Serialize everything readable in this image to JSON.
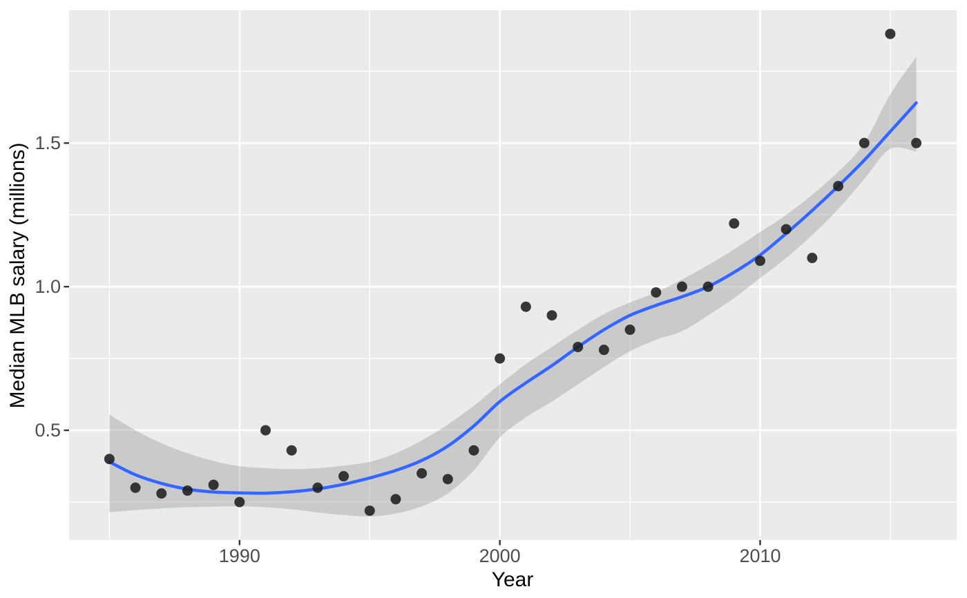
{
  "chart_data": {
    "type": "scatter",
    "title": "",
    "xlabel": "Year",
    "ylabel": "Median MLB salary (millions)",
    "legend": "none",
    "grid": "on",
    "x": [
      1985,
      1986,
      1987,
      1988,
      1989,
      1990,
      1991,
      1992,
      1993,
      1994,
      1995,
      1996,
      1997,
      1998,
      1999,
      2000,
      2001,
      2002,
      2003,
      2004,
      2005,
      2006,
      2007,
      2008,
      2009,
      2010,
      2011,
      2012,
      2013,
      2014,
      2015,
      2016
    ],
    "y": [
      0.4,
      0.3,
      0.28,
      0.29,
      0.31,
      0.25,
      0.5,
      0.43,
      0.3,
      0.34,
      0.22,
      0.26,
      0.35,
      0.33,
      0.43,
      0.75,
      0.93,
      0.9,
      0.79,
      0.78,
      0.85,
      0.98,
      1.0,
      1.0,
      1.22,
      1.09,
      1.2,
      1.1,
      1.35,
      1.5,
      1.88,
      1.5
    ],
    "smooth_line": {
      "name": "loess-fit",
      "y": [
        0.39,
        0.345,
        0.315,
        0.295,
        0.285,
        0.282,
        0.281,
        0.286,
        0.296,
        0.312,
        0.334,
        0.36,
        0.395,
        0.445,
        0.515,
        0.6,
        0.665,
        0.725,
        0.79,
        0.85,
        0.9,
        0.935,
        0.965,
        1.0,
        1.05,
        1.11,
        1.185,
        1.265,
        1.35,
        1.44,
        1.54,
        1.64
      ]
    },
    "ribbon": {
      "name": "confidence-band",
      "upper": [
        0.555,
        0.5,
        0.455,
        0.42,
        0.393,
        0.375,
        0.368,
        0.365,
        0.368,
        0.377,
        0.39,
        0.42,
        0.465,
        0.52,
        0.585,
        0.66,
        0.73,
        0.79,
        0.85,
        0.905,
        0.945,
        0.98,
        1.025,
        1.075,
        1.13,
        1.19,
        1.25,
        1.32,
        1.4,
        1.5,
        1.67,
        1.8
      ],
      "lower": [
        0.215,
        0.222,
        0.228,
        0.232,
        0.234,
        0.235,
        0.232,
        0.225,
        0.214,
        0.205,
        0.2,
        0.21,
        0.235,
        0.28,
        0.36,
        0.475,
        0.545,
        0.6,
        0.66,
        0.72,
        0.775,
        0.815,
        0.845,
        0.9,
        0.96,
        1.03,
        1.1,
        1.18,
        1.27,
        1.375,
        1.48,
        1.47
      ]
    },
    "x_axis": {
      "breaks": [
        1990,
        2000,
        2010
      ],
      "labels": [
        "1990",
        "2000",
        "2010"
      ],
      "minor_breaks": [
        1985,
        1995,
        2005,
        2015
      ],
      "range": [
        1983.45,
        2017.55
      ]
    },
    "y_axis": {
      "breaks": [
        0.5,
        1.0,
        1.5
      ],
      "labels": [
        "0.5",
        "1.0",
        "1.5"
      ],
      "minor_breaks": [
        0.25,
        0.75,
        1.25,
        1.75
      ],
      "range": [
        0.118,
        1.962
      ]
    },
    "colors": {
      "panel_background": "#EBEBEB",
      "gridline": "#FFFFFF",
      "ribbon_fill": "#999999",
      "ribbon_opacity": 0.4,
      "smooth_line": "#3366FF",
      "point_fill": "#1E1E1E",
      "point_opacity": 0.88,
      "tick_label": "#4D4D4D",
      "tick_mark": "#333333",
      "axis_title": "#000000"
    }
  }
}
